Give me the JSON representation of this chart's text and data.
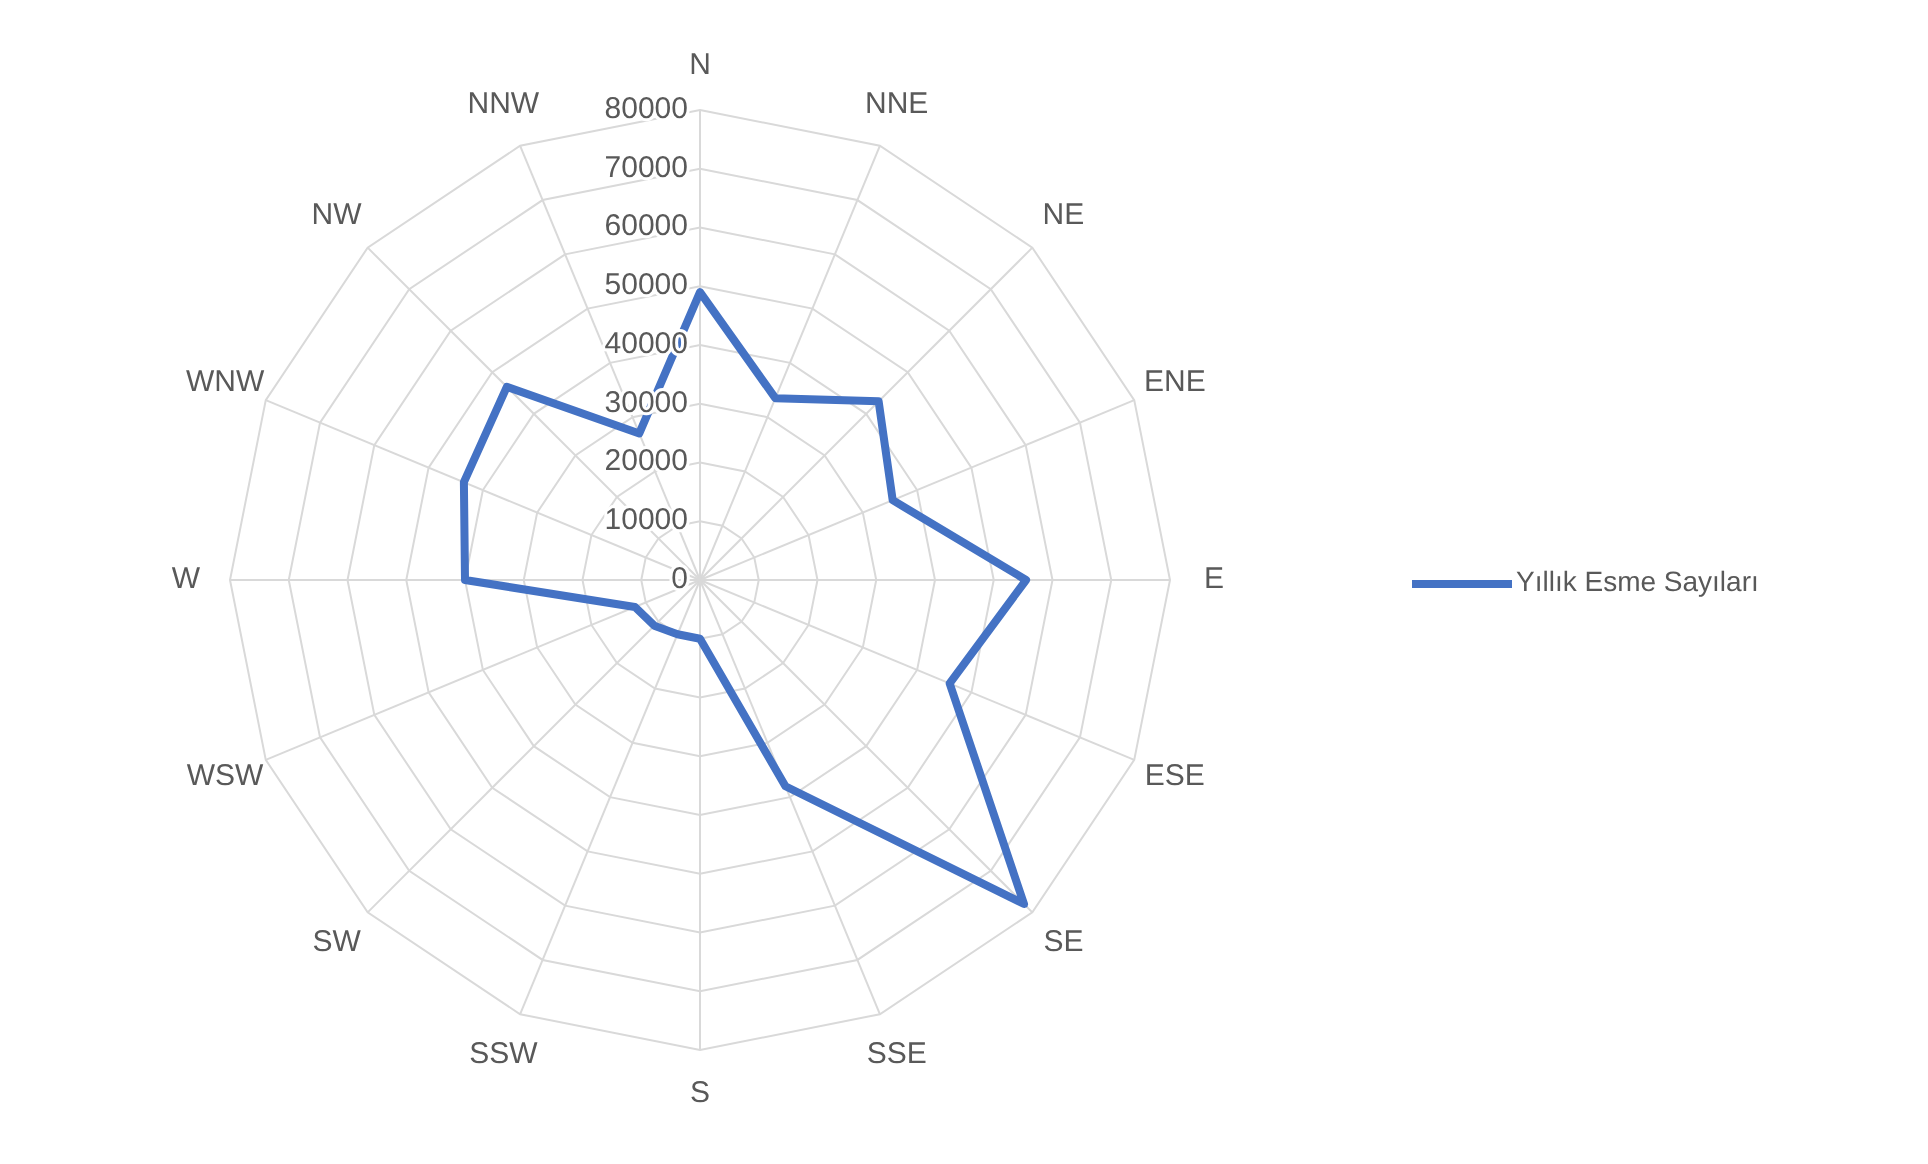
{
  "chart_data": {
    "type": "radar",
    "categories": [
      "N",
      "NNE",
      "NE",
      "ENE",
      "E",
      "ESE",
      "SE",
      "SSE",
      "S",
      "SSW",
      "SW",
      "WSW",
      "W",
      "WNW",
      "NW",
      "NNW"
    ],
    "series": [
      {
        "name": "Yıllık Esme Sayıları",
        "color": "#4472c4",
        "values": [
          49000,
          33500,
          43000,
          35500,
          55500,
          46000,
          78000,
          38000,
          10000,
          10000,
          11000,
          12000,
          40000,
          43500,
          46500,
          27000
        ]
      }
    ],
    "ylim": [
      0,
      80000
    ],
    "yticks": [
      0,
      10000,
      20000,
      30000,
      40000,
      50000,
      60000,
      70000,
      80000
    ],
    "grid": true,
    "legend": "right"
  }
}
